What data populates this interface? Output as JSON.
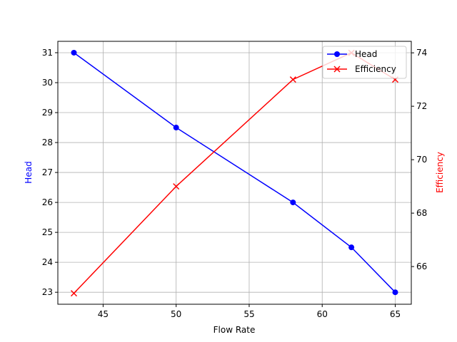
{
  "chart_data": {
    "type": "line",
    "title": "",
    "xlabel": "Flow Rate",
    "ylabel_left": "Head",
    "ylabel_right": "Efficiency",
    "xlim": [
      41.9,
      66.1
    ],
    "ylim_left": [
      22.6,
      31.38
    ],
    "ylim_right": [
      64.59,
      74.43
    ],
    "grid": true,
    "legend_position": "top-right",
    "x_ticks": [
      45,
      50,
      55,
      60,
      65
    ],
    "y_ticks_left": [
      23,
      24,
      25,
      26,
      27,
      28,
      29,
      30,
      31
    ],
    "y_ticks_right": [
      66,
      68,
      70,
      72,
      74
    ],
    "x": [
      43,
      50,
      58,
      62,
      65
    ],
    "series": [
      {
        "name": "Head",
        "axis": "left",
        "values": [
          31,
          28.5,
          26,
          24.5,
          23
        ],
        "color": "#0000ff",
        "marker": "circle"
      },
      {
        "name": "Efficiency",
        "axis": "right",
        "values": [
          65,
          69,
          73,
          74,
          73
        ],
        "color": "#ff0000",
        "marker": "x"
      }
    ]
  }
}
